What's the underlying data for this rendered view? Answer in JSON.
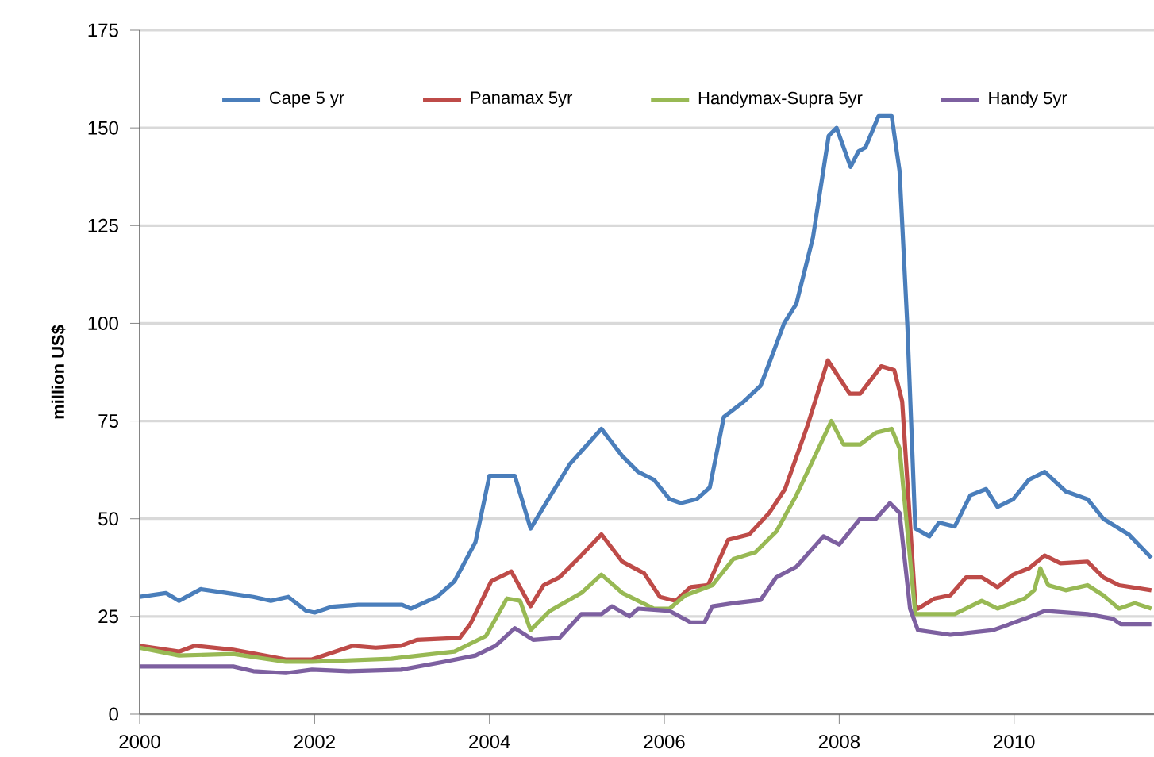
{
  "chart_data": {
    "type": "line",
    "ylabel": "million US$",
    "xlim": [
      2000,
      2011.6
    ],
    "ylim": [
      0,
      175
    ],
    "xticks": [
      2000,
      2002,
      2004,
      2006,
      2008,
      2010
    ],
    "yticks": [
      0,
      25,
      50,
      75,
      100,
      125,
      150,
      175
    ],
    "grid": "y",
    "legend": "top",
    "marker": "none",
    "line_style": "solid",
    "series": [
      {
        "name": "Cape 5 yr",
        "color": "#4a7ebb",
        "x": [
          2000,
          2000.3,
          2000.45,
          2000.7,
          2001.0,
          2001.3,
          2001.5,
          2001.7,
          2001.9,
          2002.0,
          2002.2,
          2002.5,
          2003.0,
          2003.1,
          2003.4,
          2003.6,
          2003.84,
          2004.0,
          2004.29,
          2004.47,
          2004.69,
          2004.92,
          2005.28,
          2005.52,
          2005.7,
          2005.88,
          2006.06,
          2006.19,
          2006.37,
          2006.52,
          2006.68,
          2006.91,
          2007.1,
          2007.22,
          2007.37,
          2007.51,
          2007.7,
          2007.88,
          2007.97,
          2008.13,
          2008.22,
          2008.3,
          2008.45,
          2008.6,
          2008.69,
          2008.78,
          2008.87,
          2009.03,
          2009.14,
          2009.32,
          2009.5,
          2009.68,
          2009.81,
          2009.99,
          2010.17,
          2010.35,
          2010.59,
          2010.84,
          2011.02,
          2011.31,
          2011.57
        ],
        "values": [
          30,
          31,
          29,
          32,
          31,
          30,
          29,
          30,
          26.5,
          26,
          27.5,
          28,
          28,
          27,
          30,
          34,
          44,
          61,
          61,
          47.5,
          55.6,
          64,
          73,
          66,
          62,
          60,
          55,
          54,
          55,
          58,
          76,
          80,
          84,
          91,
          100,
          105,
          122,
          148,
          150,
          140,
          144,
          145,
          153,
          153,
          139,
          99,
          47.5,
          45.5,
          49,
          48,
          56,
          57.6,
          53,
          55,
          60,
          62,
          57,
          55,
          50,
          46,
          40
        ]
      },
      {
        "name": "Panamax 5yr",
        "color": "#be4b48",
        "x": [
          2000,
          2000.45,
          2000.63,
          2001.07,
          2001.67,
          2001.97,
          2002.44,
          2002.7,
          2002.99,
          2003.17,
          2003.66,
          2003.78,
          2004.02,
          2004.25,
          2004.47,
          2004.62,
          2004.8,
          2005.05,
          2005.28,
          2005.52,
          2005.77,
          2005.95,
          2006.13,
          2006.3,
          2006.5,
          2006.73,
          2006.97,
          2007.2,
          2007.38,
          2007.64,
          2007.87,
          2008.12,
          2008.24,
          2008.48,
          2008.63,
          2008.72,
          2008.87,
          2008.9,
          2009.09,
          2009.27,
          2009.45,
          2009.63,
          2009.81,
          2009.99,
          2010.17,
          2010.35,
          2010.53,
          2010.84,
          2011.02,
          2011.2,
          2011.57
        ],
        "values": [
          17.5,
          16,
          17.5,
          16.5,
          14,
          14,
          17.5,
          17,
          17.5,
          19,
          19.5,
          23,
          34,
          36.5,
          27.6,
          33,
          35,
          40.6,
          46,
          39,
          36,
          30,
          29,
          32.5,
          33,
          44.6,
          46,
          51.5,
          57.6,
          74,
          90.5,
          82,
          82,
          89,
          88,
          80,
          28,
          27,
          29.6,
          30.4,
          35,
          35,
          32.5,
          35.7,
          37.3,
          40.6,
          38.6,
          39,
          35,
          33,
          31.7
        ]
      },
      {
        "name": "Handymax-Supra 5yr",
        "color": "#98b954",
        "x": [
          2000,
          2000.45,
          2001.07,
          2001.67,
          2001.97,
          2002.88,
          2003.6,
          2003.96,
          2004.2,
          2004.35,
          2004.47,
          2004.69,
          2005.05,
          2005.28,
          2005.52,
          2005.7,
          2005.88,
          2006.06,
          2006.24,
          2006.55,
          2006.79,
          2007.04,
          2007.28,
          2007.51,
          2007.7,
          2007.91,
          2008.05,
          2008.24,
          2008.42,
          2008.6,
          2008.69,
          2008.87,
          2008.9,
          2009.32,
          2009.63,
          2009.81,
          2010.12,
          2010.23,
          2010.3,
          2010.39,
          2010.59,
          2010.84,
          2011.02,
          2011.2,
          2011.38,
          2011.57
        ],
        "values": [
          17,
          15,
          15.4,
          13.4,
          13.4,
          14.2,
          16,
          20,
          29.6,
          29,
          21.5,
          26.4,
          31,
          35.7,
          31,
          29,
          27,
          27,
          30.4,
          33,
          39.7,
          41.4,
          46.7,
          56,
          65,
          75,
          69,
          69,
          72,
          73,
          68,
          25.6,
          25.6,
          25.6,
          29,
          27,
          29.6,
          31.7,
          37.3,
          33,
          31.7,
          33,
          30.4,
          27,
          28.4,
          27
        ]
      },
      {
        "name": "Handy 5yr",
        "color": "#7d60a0",
        "x": [
          2000,
          2001.07,
          2001.3,
          2001.67,
          2001.97,
          2002.39,
          2002.99,
          2003.48,
          2003.84,
          2004.07,
          2004.29,
          2004.5,
          2004.8,
          2005.05,
          2005.28,
          2005.4,
          2005.6,
          2005.7,
          2006.06,
          2006.3,
          2006.46,
          2006.55,
          2006.79,
          2007.1,
          2007.28,
          2007.51,
          2007.82,
          2008.0,
          2008.24,
          2008.42,
          2008.58,
          2008.69,
          2008.81,
          2008.9,
          2009.27,
          2009.76,
          2010.12,
          2010.35,
          2010.84,
          2011.13,
          2011.22,
          2011.57
        ],
        "values": [
          12.2,
          12.2,
          11,
          10.5,
          11.4,
          11,
          11.4,
          13.4,
          15,
          17.5,
          22,
          19,
          19.5,
          25.6,
          25.6,
          27.6,
          25,
          27,
          26.4,
          23.5,
          23.5,
          27.6,
          28.4,
          29.2,
          35,
          37.7,
          45.5,
          43.4,
          50,
          50,
          54,
          51.5,
          27,
          21.5,
          20.3,
          21.5,
          24.4,
          26.4,
          25.6,
          24.4,
          23,
          23
        ]
      }
    ]
  }
}
